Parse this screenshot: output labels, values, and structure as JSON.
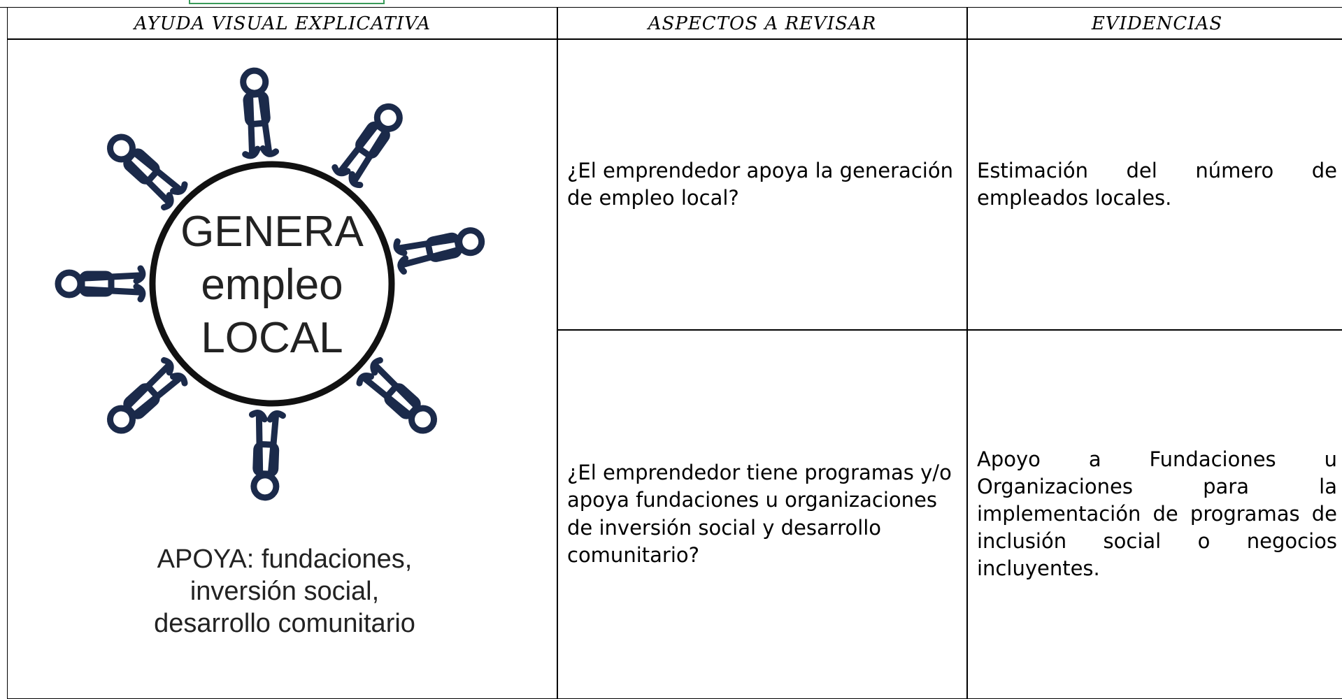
{
  "table": {
    "headers": [
      "AYUDA VISUAL EXPLICATIVA",
      "ASPECTOS A REVISAR",
      "EVIDENCIAS"
    ],
    "rows": [
      {
        "question": "¿El emprendedor apoya la generación de empleo local?",
        "evidence": "Estimación del número de empleados locales."
      },
      {
        "question": "¿El emprendedor tiene programas y/o apoya fundaciones u organizaciones de inversión social y desarrollo comunitario?",
        "evidence": "Apoyo a Fundaciones u Organizaciones para la implementación de programas de inclusión social o negocios incluyentes."
      }
    ]
  },
  "visual_aid": {
    "circle_lines": [
      "GENERA",
      "empleo",
      "LOCAL"
    ],
    "caption": [
      "APOYA: fundaciones,",
      "inversión social,",
      "desarrollo comunitario"
    ]
  }
}
